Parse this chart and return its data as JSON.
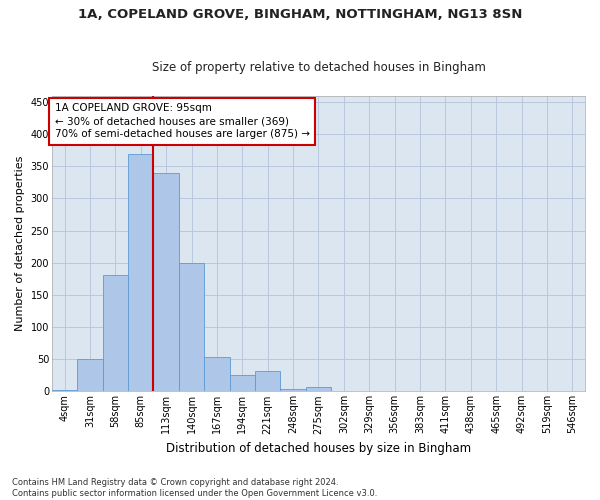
{
  "title1": "1A, COPELAND GROVE, BINGHAM, NOTTINGHAM, NG13 8SN",
  "title2": "Size of property relative to detached houses in Bingham",
  "xlabel": "Distribution of detached houses by size in Bingham",
  "ylabel": "Number of detached properties",
  "footnote": "Contains HM Land Registry data © Crown copyright and database right 2024.\nContains public sector information licensed under the Open Government Licence v3.0.",
  "bar_labels": [
    "4sqm",
    "31sqm",
    "58sqm",
    "85sqm",
    "113sqm",
    "140sqm",
    "167sqm",
    "194sqm",
    "221sqm",
    "248sqm",
    "275sqm",
    "302sqm",
    "329sqm",
    "356sqm",
    "383sqm",
    "411sqm",
    "438sqm",
    "465sqm",
    "492sqm",
    "519sqm",
    "546sqm"
  ],
  "bar_values": [
    2,
    50,
    181,
    369,
    340,
    199,
    54,
    25,
    31,
    4,
    7,
    0,
    0,
    0,
    0,
    0,
    0,
    0,
    0,
    0,
    1
  ],
  "bar_color": "#aec6e8",
  "bar_edgecolor": "#5b9bd5",
  "vline_color": "#cc0000",
  "ylim": [
    0,
    460
  ],
  "yticks": [
    0,
    50,
    100,
    150,
    200,
    250,
    300,
    350,
    400,
    450
  ],
  "annotation_label": "1A COPELAND GROVE: 95sqm",
  "annotation_line1": "← 30% of detached houses are smaller (369)",
  "annotation_line2": "70% of semi-detached houses are larger (875) →",
  "bg_color": "#ffffff",
  "ax_bg_color": "#dce6f0",
  "grid_color": "#b8c8dc",
  "annotation_box_edgecolor": "#cc0000",
  "title1_fontsize": 9.5,
  "title2_fontsize": 8.5,
  "ylabel_fontsize": 8,
  "xlabel_fontsize": 8.5,
  "tick_fontsize": 7,
  "annot_fontsize": 7.5,
  "footnote_fontsize": 6
}
